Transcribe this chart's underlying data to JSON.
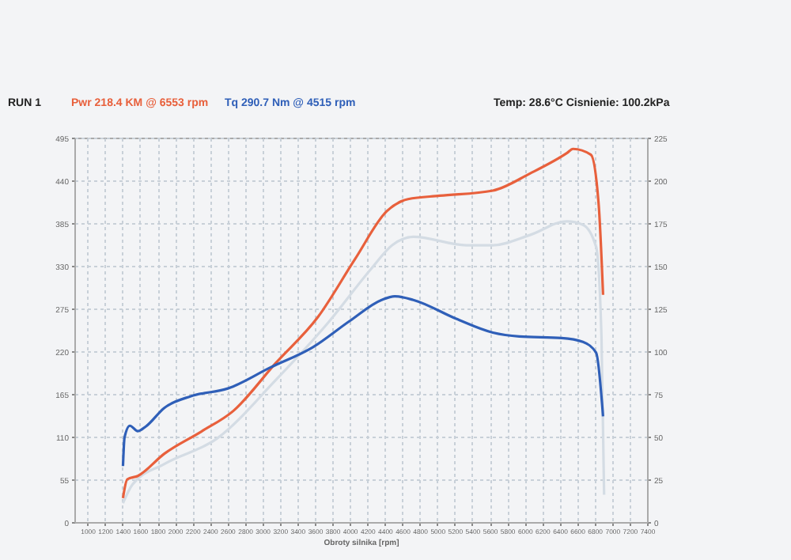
{
  "chart_data": {
    "type": "line",
    "xlabel": "Obroty silnika [rpm]",
    "annotations": [
      "RUN 1",
      "Pwr  218.4 KM @ 6553 rpm",
      "Tq  290.7 Nm @ 4515 rpm",
      "Temp: 28.6°C Cisnienie: 100.2kPa"
    ],
    "xlim": [
      850,
      7400
    ],
    "xticks": [
      1000,
      1200,
      1400,
      1600,
      1800,
      2000,
      2200,
      2400,
      2600,
      2800,
      3000,
      3200,
      3400,
      3600,
      3800,
      4000,
      4200,
      4400,
      4600,
      4800,
      5000,
      5200,
      5400,
      5600,
      5800,
      6000,
      6200,
      6400,
      6600,
      6800,
      7000,
      7200,
      7400
    ],
    "ylim": [
      0,
      495
    ],
    "yticks": [
      0,
      55,
      110,
      165,
      220,
      275,
      330,
      385,
      440,
      495
    ],
    "y2lim": [
      0,
      225
    ],
    "y2ticks": [
      0,
      25,
      50,
      75,
      100,
      125,
      150,
      175,
      200,
      225
    ],
    "grid": true,
    "legend": false,
    "line_style": "solid",
    "marker": "none",
    "series": [
      {
        "color": "#2f5fb8",
        "x": [
          1406,
          1424,
          1485,
          1576,
          1667,
          1879,
          2182,
          2606,
          3091,
          3576,
          4000,
          4364,
          4515,
          4727,
          5212,
          5636,
          5939,
          6424,
          6667,
          6818,
          6897
        ],
        "values": [
          72,
          109,
          124,
          117,
          123,
          147,
          162,
          172,
          199,
          225,
          259,
          286,
          290.7,
          286,
          262,
          244,
          239,
          237,
          232,
          218,
          136
        ]
      },
      {
        "color": "#e8603c",
        "axis": "y2",
        "x": [
          1406,
          1455,
          1576,
          1879,
          2303,
          2667,
          3152,
          3636,
          4061,
          4424,
          4667,
          5030,
          5636,
          6061,
          6485,
          6553,
          6758,
          6848,
          6897
        ],
        "values": [
          14,
          25,
          27,
          40,
          53,
          65,
          93,
          120,
          154,
          182,
          189,
          191,
          194,
          204,
          216,
          218.4,
          215,
          185,
          133
        ]
      },
      {
        "color": "#d4dce4",
        "axis": "y2",
        "x": [
          1406,
          1515,
          1879,
          2485,
          3152,
          3758,
          4242,
          4485,
          4727,
          5333,
          5636,
          6061,
          6485,
          6667,
          6818,
          6879,
          6909
        ],
        "values": [
          11,
          22,
          34,
          49,
          83,
          117,
          148,
          162,
          167,
          162,
          162,
          168,
          176,
          174,
          161,
          108,
          16
        ]
      }
    ]
  }
}
